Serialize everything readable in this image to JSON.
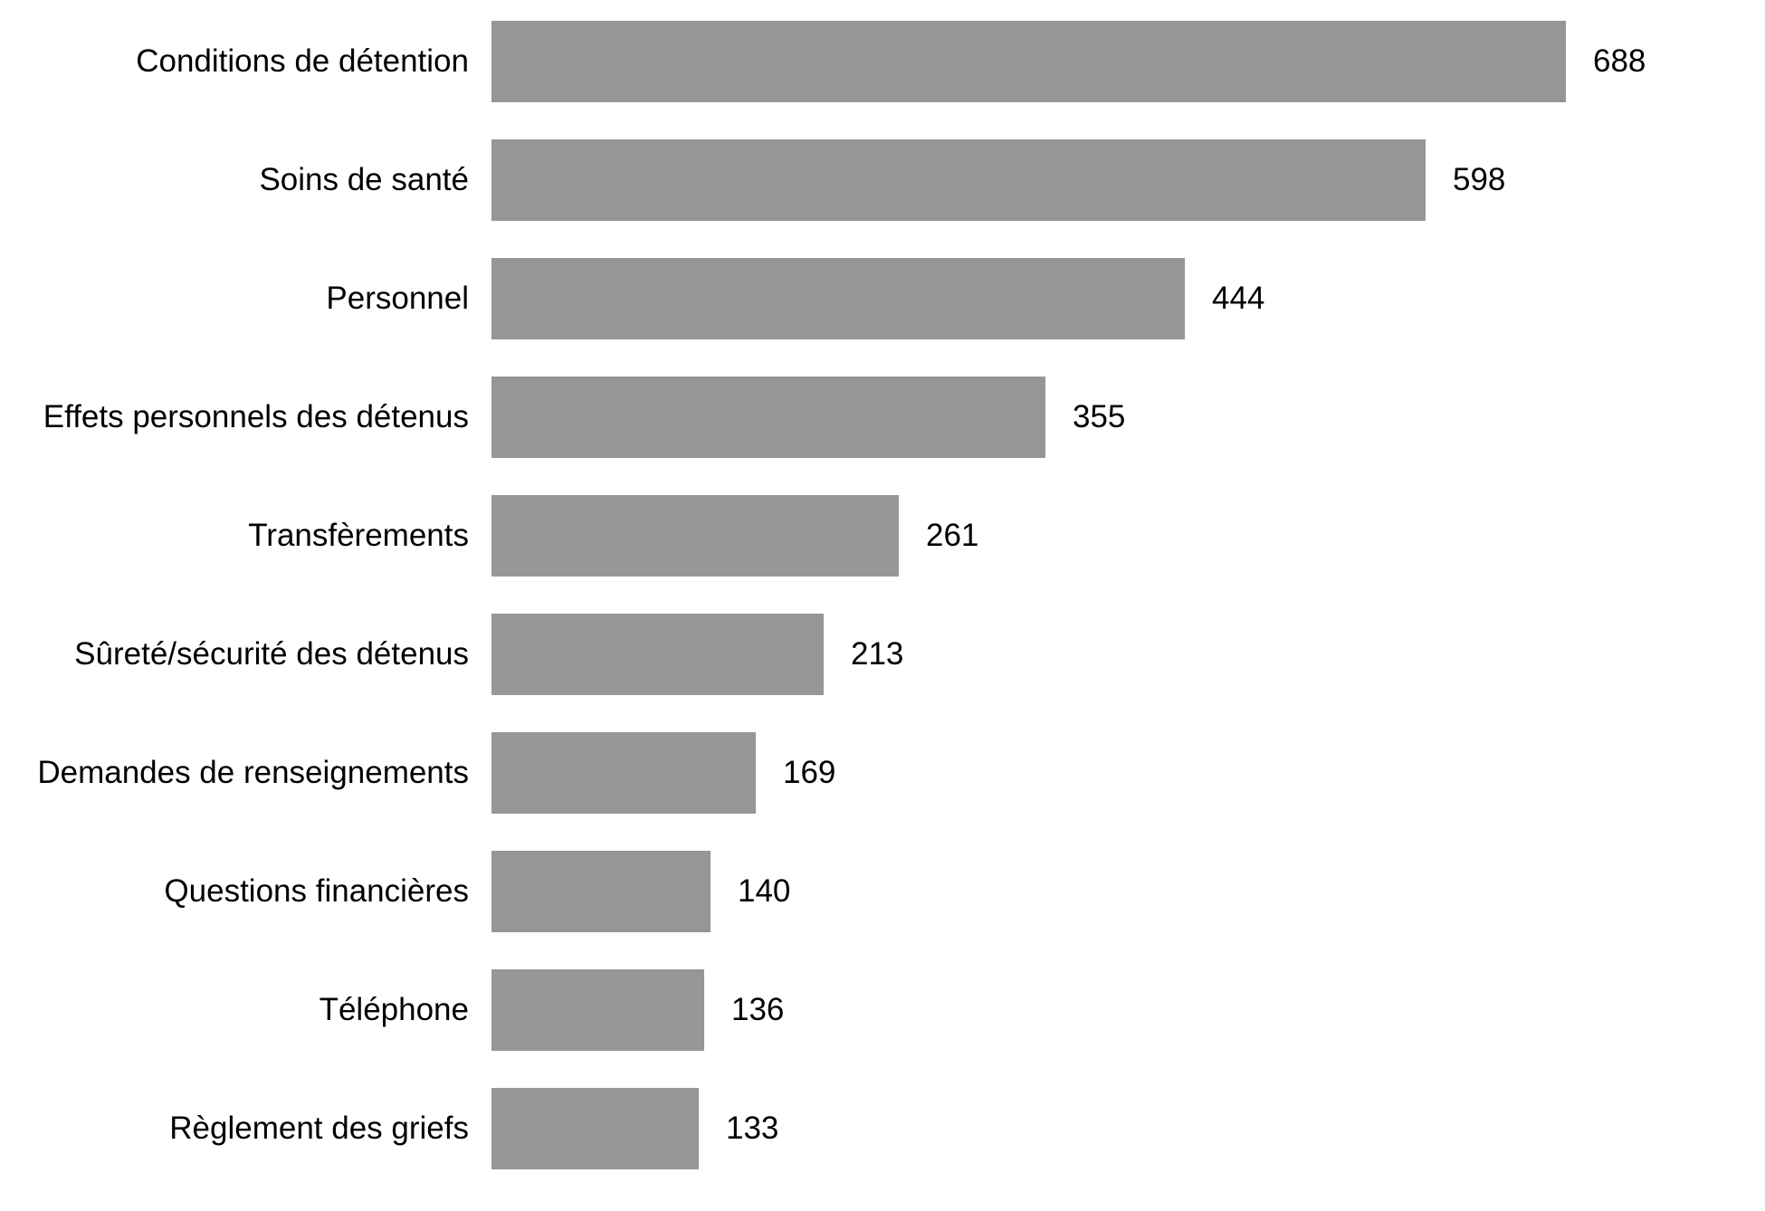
{
  "chart_data": {
    "type": "bar",
    "orientation": "horizontal",
    "title": "",
    "xlabel": "",
    "ylabel": "",
    "categories": [
      "Conditions de détention",
      "Soins de santé",
      "Personnel",
      "Effets personnels des détenus",
      "Transfèrements",
      "Sûreté/sécurité des détenus",
      "Demandes de renseignements",
      "Questions financières",
      "Téléphone",
      "Règlement des griefs"
    ],
    "values": [
      688,
      598,
      444,
      355,
      261,
      213,
      169,
      140,
      136,
      133
    ],
    "xlim": [
      0,
      688
    ],
    "bar_color": "#969696",
    "text_color": "#000000",
    "background_color": "#ffffff",
    "data_labels": "outside-end",
    "grid": false,
    "legend": false,
    "axes_visible": false
  }
}
